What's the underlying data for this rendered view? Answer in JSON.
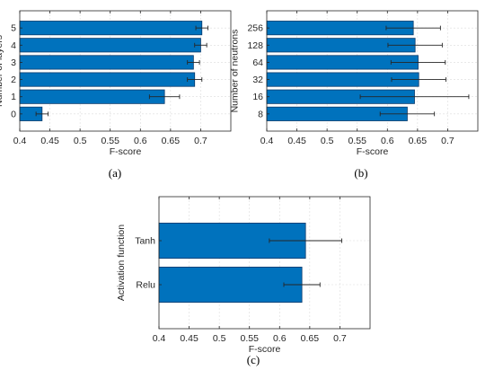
{
  "colors": {
    "bar": "#0072BD",
    "bar_edge": "#0a3a6b",
    "error": "#262626"
  },
  "chart_data": [
    {
      "type": "bar",
      "orientation": "horizontal",
      "panel_label": "(a)",
      "xlabel": "F-score",
      "ylabel": "Number of layers",
      "xlim": [
        0.4,
        0.75
      ],
      "xticks": [
        0.4,
        0.45,
        0.5,
        0.55,
        0.6,
        0.65,
        0.7
      ],
      "grid": true,
      "categories": [
        "0",
        "1",
        "2",
        "3",
        "4",
        "5"
      ],
      "values": [
        0.437,
        0.64,
        0.69,
        0.688,
        0.7,
        0.702
      ],
      "errors": [
        0.01,
        0.025,
        0.012,
        0.01,
        0.01,
        0.01
      ]
    },
    {
      "type": "bar",
      "orientation": "horizontal",
      "panel_label": "(b)",
      "xlabel": "F-score",
      "ylabel": "Number of neutrons",
      "xlim": [
        0.4,
        0.75
      ],
      "xticks": [
        0.4,
        0.45,
        0.5,
        0.55,
        0.6,
        0.65,
        0.7
      ],
      "grid": true,
      "categories": [
        "8",
        "16",
        "32",
        "64",
        "128",
        "256"
      ],
      "values": [
        0.633,
        0.645,
        0.652,
        0.651,
        0.646,
        0.643
      ],
      "errors": [
        0.045,
        0.09,
        0.045,
        0.045,
        0.045,
        0.045
      ]
    },
    {
      "type": "bar",
      "orientation": "horizontal",
      "panel_label": "(c)",
      "xlabel": "F-score",
      "ylabel": "Activation function",
      "xlim": [
        0.4,
        0.75
      ],
      "xticks": [
        0.4,
        0.45,
        0.5,
        0.55,
        0.6,
        0.65,
        0.7
      ],
      "grid": true,
      "categories": [
        "Relu",
        "Tanh"
      ],
      "values": [
        0.637,
        0.643
      ],
      "errors": [
        0.03,
        0.06
      ]
    }
  ]
}
